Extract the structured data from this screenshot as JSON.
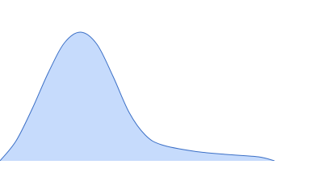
{
  "chart_data": {
    "type": "area",
    "x": [
      0,
      20,
      40,
      60,
      80,
      100,
      120,
      140,
      160,
      180,
      200,
      240,
      280,
      320,
      340
    ],
    "values": [
      0,
      25,
      65,
      110,
      147,
      160,
      145,
      105,
      60,
      32,
      20,
      12,
      8,
      5,
      0
    ],
    "xlim": [
      0,
      400
    ],
    "ylim": [
      0,
      200
    ],
    "color": "#c6dbfc",
    "line_color": "#3b6fc6"
  }
}
